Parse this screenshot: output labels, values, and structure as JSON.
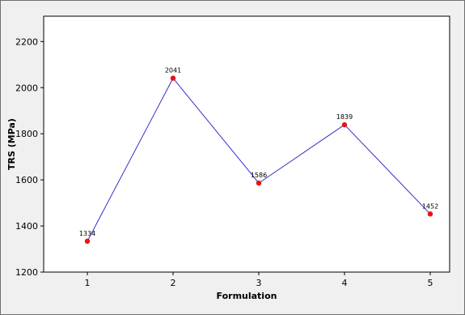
{
  "chart_data": {
    "type": "line",
    "title": "",
    "xlabel": "Formulation",
    "ylabel": "TRS (MPa)",
    "categories": [
      "1",
      "2",
      "3",
      "4",
      "5"
    ],
    "series": [
      {
        "values": [
          1334,
          2041,
          1586,
          1839,
          1452
        ]
      }
    ],
    "data_labels": [
      "1334",
      "2041",
      "1586",
      "1839",
      "1452"
    ],
    "y_ticks": [
      1200,
      1400,
      1600,
      1800,
      2000,
      2200
    ],
    "y_tick_labels": [
      "1200",
      "1400",
      "1600",
      "1800",
      "2000",
      "2200"
    ],
    "ylim": [
      1200,
      2310
    ],
    "grid": false,
    "legend": "none",
    "colors": {
      "line": "#3333cc",
      "marker": "#ee1111",
      "plot_background": "#ffffff",
      "figure_background": "#f0f0f0"
    }
  }
}
